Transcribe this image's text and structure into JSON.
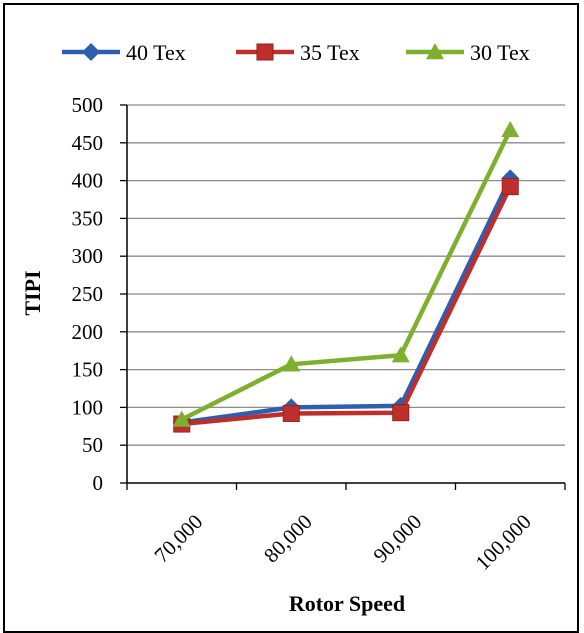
{
  "chart_data": {
    "type": "line",
    "categories": [
      "70,000",
      "80,000",
      "90,000",
      "100,000"
    ],
    "series": [
      {
        "name": "40 Tex",
        "values": [
          80,
          100,
          102,
          403
        ],
        "color": "#2E5FAF",
        "marker": "diamond"
      },
      {
        "name": "35 Tex",
        "values": [
          78,
          92,
          93,
          392
        ],
        "color": "#BE2E2B",
        "marker": "square"
      },
      {
        "name": "30 Tex",
        "values": [
          84,
          157,
          169,
          467
        ],
        "color": "#7FAF2E",
        "marker": "triangle"
      }
    ],
    "xlabel": "Rotor Speed",
    "ylabel": "TIPI",
    "ylim": [
      0,
      500
    ],
    "yticks": [
      "0",
      "50",
      "100",
      "150",
      "200",
      "250",
      "300",
      "350",
      "400",
      "450",
      "500"
    ],
    "grid": true,
    "legend": "top"
  }
}
